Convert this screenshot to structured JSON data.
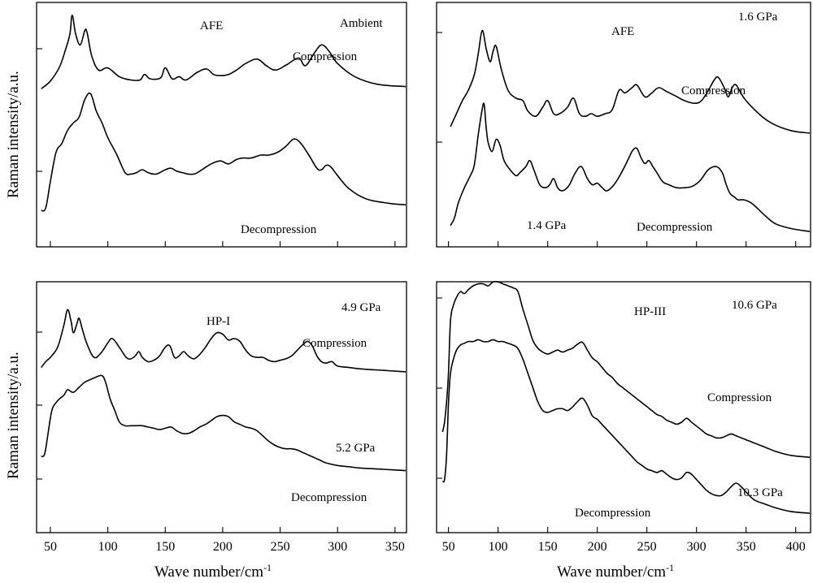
{
  "figure": {
    "xlabel_left": "Wave number/cm",
    "xlabel_right": "Wave number/cm",
    "xlabel_superscript": "-1",
    "ylabel_top": "Raman intensity/a.u.",
    "ylabel_bottom": "Raman intensity/a.u.",
    "x_ticks_left": [
      "50",
      "100",
      "150",
      "200",
      "250",
      "300",
      "350"
    ],
    "x_ticks_right": [
      "50",
      "100",
      "150",
      "200",
      "250",
      "300",
      "350",
      "400"
    ],
    "line_color": "#000000"
  },
  "chart_data": [
    {
      "type": "line",
      "panel": "top-left",
      "xlim": [
        38,
        360
      ],
      "annotations": [
        "AFE",
        "Ambient",
        "Compression",
        "Decompression"
      ],
      "series": [
        {
          "curve": "upper",
          "x": [
            42,
            50,
            58,
            63,
            67,
            69,
            72,
            76,
            80,
            82,
            86,
            92,
            100,
            110,
            120,
            128,
            132,
            137,
            146,
            150,
            156,
            162,
            168,
            178,
            186,
            192,
            198,
            205,
            212,
            220,
            230,
            238,
            246,
            256,
            266,
            272,
            280,
            286,
            292,
            300,
            315,
            335,
            360
          ],
          "y": [
            0.45,
            0.52,
            0.65,
            0.8,
            0.95,
            1.12,
            0.95,
            0.85,
            0.98,
            0.96,
            0.75,
            0.62,
            0.64,
            0.56,
            0.53,
            0.53,
            0.58,
            0.54,
            0.55,
            0.64,
            0.54,
            0.56,
            0.53,
            0.6,
            0.63,
            0.58,
            0.57,
            0.58,
            0.62,
            0.68,
            0.72,
            0.66,
            0.62,
            0.67,
            0.73,
            0.66,
            0.78,
            0.85,
            0.8,
            0.68,
            0.56,
            0.49,
            0.47
          ]
        },
        {
          "curve": "lower",
          "x": [
            42,
            46,
            50,
            55,
            60,
            65,
            70,
            75,
            80,
            85,
            90,
            95,
            100,
            108,
            115,
            120,
            125,
            130,
            135,
            142,
            150,
            155,
            160,
            165,
            170,
            175,
            180,
            190,
            198,
            205,
            212,
            218,
            225,
            233,
            240,
            248,
            255,
            262,
            268,
            275,
            282,
            286,
            290,
            294,
            300,
            310,
            325,
            345,
            360
          ],
          "y": [
            0.12,
            0.14,
            0.32,
            0.52,
            0.58,
            0.67,
            0.72,
            0.76,
            0.88,
            0.92,
            0.8,
            0.72,
            0.62,
            0.5,
            0.38,
            0.37,
            0.38,
            0.4,
            0.38,
            0.37,
            0.4,
            0.41,
            0.39,
            0.38,
            0.37,
            0.37,
            0.39,
            0.44,
            0.46,
            0.44,
            0.47,
            0.48,
            0.48,
            0.5,
            0.5,
            0.52,
            0.56,
            0.61,
            0.58,
            0.5,
            0.41,
            0.4,
            0.43,
            0.42,
            0.36,
            0.27,
            0.2,
            0.17,
            0.16
          ]
        }
      ]
    },
    {
      "type": "line",
      "panel": "top-right",
      "xlim": [
        38,
        415
      ],
      "annotations": [
        "AFE",
        "1.6 GPa",
        "Compression",
        "1.4 GPa",
        "Decompression"
      ],
      "series": [
        {
          "curve": "upper",
          "x": [
            52,
            58,
            64,
            70,
            76,
            80,
            84,
            88,
            92,
            95,
            98,
            103,
            110,
            118,
            125,
            130,
            138,
            145,
            150,
            156,
            162,
            170,
            176,
            182,
            188,
            194,
            200,
            208,
            215,
            222,
            228,
            235,
            240,
            248,
            255,
            262,
            270,
            278,
            288,
            298,
            305,
            312,
            318,
            322,
            328,
            332,
            336,
            340,
            348,
            360,
            375,
            395,
            415
          ],
          "y": [
            0.4,
            0.5,
            0.6,
            0.68,
            0.8,
            0.96,
            1.14,
            1.0,
            0.9,
            0.98,
            1.02,
            0.85,
            0.68,
            0.62,
            0.6,
            0.52,
            0.48,
            0.55,
            0.6,
            0.5,
            0.5,
            0.55,
            0.62,
            0.5,
            0.48,
            0.5,
            0.48,
            0.5,
            0.53,
            0.68,
            0.66,
            0.7,
            0.72,
            0.63,
            0.66,
            0.7,
            0.67,
            0.64,
            0.6,
            0.58,
            0.6,
            0.68,
            0.76,
            0.78,
            0.7,
            0.63,
            0.7,
            0.72,
            0.62,
            0.52,
            0.43,
            0.37,
            0.35
          ]
        },
        {
          "curve": "lower",
          "x": [
            52,
            56,
            60,
            66,
            72,
            76,
            80,
            84,
            86,
            88,
            90,
            94,
            98,
            102,
            106,
            112,
            118,
            122,
            128,
            132,
            136,
            142,
            148,
            152,
            156,
            160,
            164,
            168,
            172,
            178,
            184,
            190,
            195,
            200,
            205,
            210,
            218,
            226,
            232,
            236,
            240,
            244,
            248,
            252,
            256,
            260,
            266,
            272,
            280,
            288,
            296,
            304,
            312,
            320,
            326,
            330,
            334,
            338,
            342,
            348,
            355,
            362,
            370,
            380,
            395,
            415
          ],
          "y": [
            0.05,
            0.1,
            0.2,
            0.3,
            0.38,
            0.45,
            0.65,
            0.82,
            0.85,
            0.7,
            0.6,
            0.54,
            0.62,
            0.58,
            0.48,
            0.42,
            0.38,
            0.4,
            0.44,
            0.48,
            0.42,
            0.32,
            0.3,
            0.32,
            0.36,
            0.3,
            0.28,
            0.29,
            0.32,
            0.4,
            0.44,
            0.36,
            0.32,
            0.33,
            0.3,
            0.28,
            0.33,
            0.42,
            0.5,
            0.55,
            0.56,
            0.5,
            0.46,
            0.48,
            0.44,
            0.4,
            0.34,
            0.32,
            0.3,
            0.3,
            0.31,
            0.35,
            0.42,
            0.44,
            0.4,
            0.32,
            0.26,
            0.24,
            0.22,
            0.22,
            0.2,
            0.16,
            0.11,
            0.06,
            0.03,
            0.01
          ]
        }
      ]
    },
    {
      "type": "line",
      "panel": "bottom-left",
      "xlim": [
        38,
        360
      ],
      "annotations": [
        "4.9 GPa",
        "HP-I",
        "Compression",
        "5.2 GPa",
        "Decompression"
      ],
      "series": [
        {
          "curve": "upper",
          "x": [
            42,
            46,
            50,
            55,
            58,
            62,
            65,
            68,
            70,
            73,
            75,
            78,
            82,
            88,
            94,
            100,
            104,
            110,
            116,
            120,
            124,
            127,
            130,
            135,
            140,
            145,
            150,
            154,
            158,
            162,
            166,
            170,
            175,
            180,
            185,
            190,
            195,
            200,
            205,
            210,
            215,
            220,
            225,
            230,
            235,
            240,
            245,
            250,
            255,
            260,
            265,
            270,
            274,
            278,
            282,
            286,
            290,
            295,
            300,
            310,
            320,
            340,
            360
          ],
          "y": [
            0.48,
            0.52,
            0.55,
            0.6,
            0.66,
            0.78,
            0.88,
            0.8,
            0.72,
            0.78,
            0.82,
            0.74,
            0.64,
            0.55,
            0.58,
            0.65,
            0.68,
            0.62,
            0.55,
            0.54,
            0.56,
            0.59,
            0.55,
            0.52,
            0.53,
            0.56,
            0.62,
            0.63,
            0.55,
            0.56,
            0.59,
            0.56,
            0.54,
            0.57,
            0.62,
            0.68,
            0.72,
            0.71,
            0.67,
            0.68,
            0.66,
            0.6,
            0.56,
            0.55,
            0.55,
            0.53,
            0.52,
            0.53,
            0.54,
            0.56,
            0.6,
            0.64,
            0.66,
            0.63,
            0.56,
            0.52,
            0.51,
            0.52,
            0.49,
            0.48,
            0.47,
            0.46,
            0.45
          ]
        },
        {
          "curve": "lower",
          "x": [
            42,
            45,
            48,
            50,
            52,
            55,
            58,
            62,
            65,
            70,
            75,
            80,
            85,
            90,
            95,
            98,
            102,
            106,
            110,
            115,
            120,
            125,
            130,
            135,
            140,
            145,
            150,
            155,
            160,
            165,
            170,
            175,
            180,
            185,
            190,
            195,
            200,
            205,
            210,
            215,
            220,
            225,
            230,
            235,
            240,
            245,
            250,
            255,
            260,
            265,
            270,
            275,
            280,
            285,
            290,
            300,
            310,
            320,
            340,
            360
          ],
          "y": [
            0.1,
            0.12,
            0.28,
            0.4,
            0.48,
            0.52,
            0.55,
            0.58,
            0.62,
            0.6,
            0.64,
            0.68,
            0.7,
            0.72,
            0.73,
            0.68,
            0.55,
            0.46,
            0.37,
            0.34,
            0.34,
            0.34,
            0.34,
            0.33,
            0.32,
            0.31,
            0.32,
            0.33,
            0.3,
            0.28,
            0.28,
            0.3,
            0.33,
            0.35,
            0.38,
            0.41,
            0.42,
            0.41,
            0.37,
            0.35,
            0.33,
            0.32,
            0.3,
            0.26,
            0.22,
            0.19,
            0.17,
            0.16,
            0.16,
            0.15,
            0.13,
            0.11,
            0.09,
            0.07,
            0.05,
            0.03,
            0.02,
            0.01,
            0.0,
            -0.01
          ]
        }
      ]
    },
    {
      "type": "line",
      "panel": "bottom-right",
      "xlim": [
        38,
        415
      ],
      "annotations": [
        "HP-III",
        "10.6 GPa",
        "Compression",
        "10.3 GPa",
        "Decompression"
      ],
      "series": [
        {
          "curve": "upper",
          "x": [
            44,
            46,
            48,
            50,
            52,
            55,
            58,
            62,
            66,
            70,
            75,
            80,
            85,
            90,
            95,
            100,
            105,
            110,
            115,
            120,
            125,
            130,
            135,
            140,
            145,
            150,
            155,
            160,
            165,
            170,
            175,
            180,
            185,
            190,
            195,
            200,
            205,
            210,
            215,
            220,
            225,
            230,
            235,
            240,
            245,
            250,
            255,
            260,
            265,
            270,
            275,
            280,
            285,
            290,
            295,
            300,
            305,
            310,
            315,
            320,
            325,
            330,
            335,
            340,
            345,
            350,
            355,
            360,
            370,
            380,
            395,
            415
          ],
          "y": [
            0.25,
            0.3,
            0.4,
            0.55,
            0.82,
            0.9,
            0.94,
            0.97,
            0.96,
            0.98,
            1.0,
            1.01,
            1.01,
            1.0,
            1.02,
            1.02,
            1.01,
            1.0,
            0.99,
            0.97,
            0.88,
            0.8,
            0.72,
            0.68,
            0.66,
            0.65,
            0.66,
            0.67,
            0.66,
            0.67,
            0.68,
            0.7,
            0.71,
            0.67,
            0.63,
            0.61,
            0.58,
            0.55,
            0.53,
            0.5,
            0.48,
            0.46,
            0.44,
            0.42,
            0.4,
            0.38,
            0.36,
            0.34,
            0.33,
            0.31,
            0.3,
            0.29,
            0.3,
            0.32,
            0.3,
            0.28,
            0.26,
            0.24,
            0.23,
            0.22,
            0.22,
            0.23,
            0.24,
            0.23,
            0.22,
            0.21,
            0.2,
            0.19,
            0.17,
            0.15,
            0.13,
            0.12
          ]
        },
        {
          "curve": "lower",
          "x": [
            44,
            46,
            48,
            50,
            52,
            55,
            58,
            62,
            66,
            70,
            75,
            80,
            85,
            90,
            95,
            100,
            105,
            110,
            115,
            120,
            125,
            130,
            135,
            140,
            145,
            150,
            155,
            160,
            165,
            170,
            175,
            180,
            185,
            190,
            195,
            200,
            205,
            210,
            215,
            220,
            225,
            230,
            235,
            240,
            245,
            250,
            255,
            260,
            265,
            270,
            275,
            280,
            285,
            290,
            295,
            300,
            305,
            310,
            315,
            320,
            325,
            330,
            335,
            340,
            345,
            350,
            355,
            360,
            370,
            380,
            395,
            415
          ],
          "y": [
            0.01,
            0.02,
            0.15,
            0.45,
            0.62,
            0.7,
            0.75,
            0.78,
            0.79,
            0.8,
            0.8,
            0.81,
            0.8,
            0.8,
            0.81,
            0.8,
            0.8,
            0.79,
            0.78,
            0.76,
            0.7,
            0.62,
            0.54,
            0.46,
            0.41,
            0.4,
            0.41,
            0.42,
            0.42,
            0.41,
            0.43,
            0.46,
            0.48,
            0.44,
            0.38,
            0.36,
            0.33,
            0.3,
            0.27,
            0.24,
            0.21,
            0.18,
            0.15,
            0.12,
            0.1,
            0.08,
            0.07,
            0.06,
            0.07,
            0.05,
            0.03,
            0.02,
            0.03,
            0.06,
            0.05,
            0.02,
            -0.01,
            -0.04,
            -0.06,
            -0.07,
            -0.07,
            -0.05,
            -0.02,
            0.0,
            -0.02,
            -0.05,
            -0.08,
            -0.1,
            -0.12,
            -0.14,
            -0.16,
            -0.17
          ]
        }
      ]
    }
  ]
}
